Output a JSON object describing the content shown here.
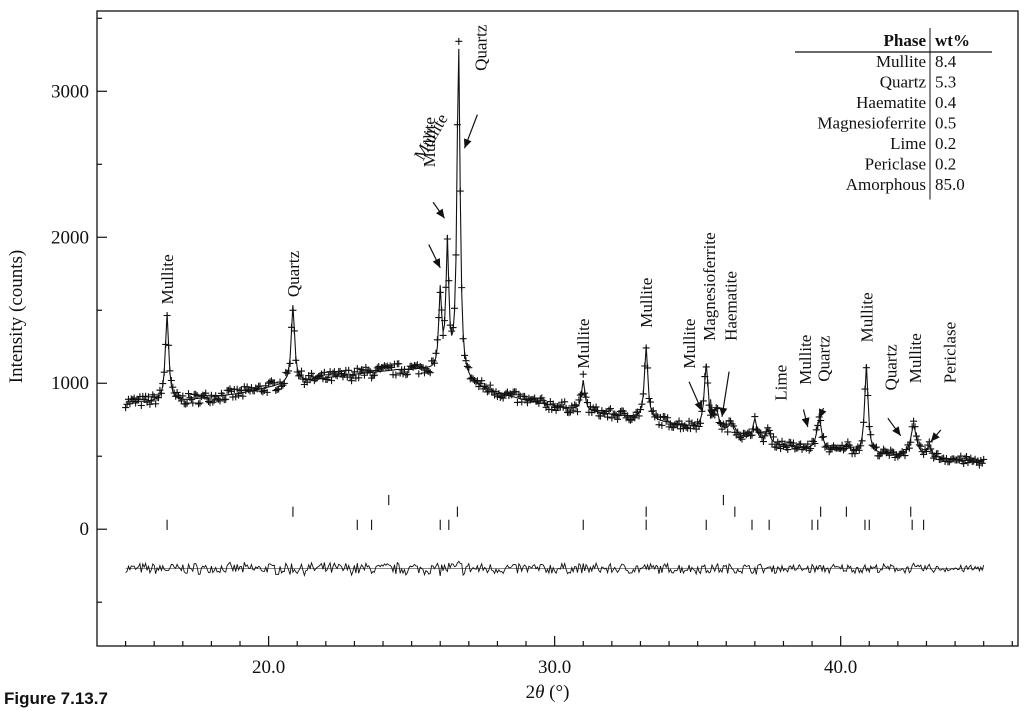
{
  "caption": "Figure 7.13.7",
  "chart_data": {
    "type": "line",
    "xlabel_prefix": "2",
    "xlabel_symbol": "θ",
    "xlabel_suffix": " (°)",
    "ylabel": "Intensity (counts)",
    "xlim": [
      14.0,
      46.2
    ],
    "ylim": [
      -800,
      3550
    ],
    "x_ticks": [
      {
        "value": 20,
        "label": "20.0"
      },
      {
        "value": 30,
        "label": "30.0"
      },
      {
        "value": 40,
        "label": "40.0"
      }
    ],
    "y_ticks": [
      {
        "value": 0,
        "label": "0"
      },
      {
        "value": 1000,
        "label": "1000"
      },
      {
        "value": 2000,
        "label": "2000"
      },
      {
        "value": 3000,
        "label": "3000"
      }
    ],
    "x_range": [
      15.0,
      45.0
    ],
    "step": 0.05,
    "background": [
      [
        15.0,
        870
      ],
      [
        17.0,
        880
      ],
      [
        19.0,
        930
      ],
      [
        21.0,
        1010
      ],
      [
        23.0,
        1060
      ],
      [
        24.5,
        1090
      ],
      [
        25.5,
        1090
      ],
      [
        26.5,
        1030
      ],
      [
        27.5,
        960
      ],
      [
        29.0,
        880
      ],
      [
        31.0,
        810
      ],
      [
        33.0,
        760
      ],
      [
        35.0,
        690
      ],
      [
        37.0,
        600
      ],
      [
        39.0,
        540
      ],
      [
        41.0,
        515
      ],
      [
        43.0,
        490
      ],
      [
        45.0,
        460
      ]
    ],
    "peaks": [
      {
        "x": 16.45,
        "h": 600,
        "w": 0.07
      },
      {
        "x": 20.85,
        "h": 530,
        "w": 0.07
      },
      {
        "x": 26.0,
        "h": 540,
        "w": 0.06
      },
      {
        "x": 26.25,
        "h": 880,
        "w": 0.06
      },
      {
        "x": 26.64,
        "h": 2300,
        "w": 0.065
      },
      {
        "x": 31.0,
        "h": 210,
        "w": 0.07
      },
      {
        "x": 33.2,
        "h": 500,
        "w": 0.07
      },
      {
        "x": 35.3,
        "h": 440,
        "w": 0.08
      },
      {
        "x": 35.65,
        "h": 130,
        "w": 0.12
      },
      {
        "x": 36.2,
        "h": 80,
        "w": 0.15
      },
      {
        "x": 37.0,
        "h": 150,
        "w": 0.08
      },
      {
        "x": 37.45,
        "h": 90,
        "w": 0.09
      },
      {
        "x": 39.25,
        "h": 210,
        "w": 0.11
      },
      {
        "x": 40.2,
        "h": 50,
        "w": 0.1
      },
      {
        "x": 40.9,
        "h": 610,
        "w": 0.07
      },
      {
        "x": 42.55,
        "h": 210,
        "w": 0.12
      },
      {
        "x": 43.1,
        "h": 70,
        "w": 0.1
      }
    ],
    "difference_offset": -270,
    "reflection_rows": [
      {
        "y_center": 200,
        "positions": [
          24.2,
          35.9
        ]
      },
      {
        "y_center": 120,
        "positions": [
          20.85,
          26.6,
          33.2,
          36.3,
          39.3,
          40.2,
          42.45
        ]
      },
      {
        "y_center": 30,
        "positions": [
          16.45,
          23.1,
          23.6,
          26.0,
          26.3,
          31.0,
          33.2,
          35.3,
          36.9,
          37.5,
          39.0,
          39.2,
          40.85,
          41.0,
          42.5,
          42.9
        ]
      }
    ],
    "annotations": [
      {
        "text": "Mullite",
        "x": 16.45,
        "y": 1540,
        "rot": -90,
        "arrow": null
      },
      {
        "text": "Quartz",
        "x": 20.85,
        "y": 1590,
        "rot": -90,
        "arrow": null
      },
      {
        "text": "Mullite",
        "x": 25.6,
        "y": 2480,
        "rot": -90,
        "arrow": {
          "from": [
            25.6,
            1950
          ],
          "to": [
            26.0,
            1790
          ]
        }
      },
      {
        "text": "Mullite",
        "x": 26.0,
        "y": 2480,
        "rot": 0,
        "arrow": {
          "from": [
            25.75,
            2240
          ],
          "to": [
            26.15,
            2130
          ]
        }
      },
      {
        "text": "Quartz",
        "x": 27.4,
        "y": 3140,
        "rot": -90,
        "arrow": {
          "from": [
            27.3,
            2840
          ],
          "to": [
            26.85,
            2610
          ]
        }
      },
      {
        "text": "Mullite",
        "x": 31.0,
        "y": 1100,
        "rot": -90,
        "arrow": null
      },
      {
        "text": "Mullite",
        "x": 33.2,
        "y": 1380,
        "rot": -90,
        "arrow": null
      },
      {
        "text": "Mullite",
        "x": 34.7,
        "y": 1100,
        "rot": -90,
        "arrow": {
          "from": [
            34.7,
            1010
          ],
          "to": [
            35.15,
            810
          ]
        }
      },
      {
        "text": "Magnesioferrite",
        "x": 35.4,
        "y": 1290,
        "rot": -90,
        "arrow": {
          "from": [
            35.45,
            890
          ],
          "to": [
            35.5,
            760
          ]
        }
      },
      {
        "text": "Haematite",
        "x": 36.15,
        "y": 1290,
        "rot": -90,
        "arrow": {
          "from": [
            36.1,
            1080
          ],
          "to": [
            35.85,
            770
          ]
        }
      },
      {
        "text": "Lime",
        "x": 37.9,
        "y": 880,
        "rot": -90,
        "arrow": null
      },
      {
        "text": "Mullite",
        "x": 38.75,
        "y": 990,
        "rot": -90,
        "arrow": {
          "from": [
            38.7,
            820
          ],
          "to": [
            38.85,
            700
          ]
        }
      },
      {
        "text": "Quartz",
        "x": 39.4,
        "y": 1010,
        "rot": -90,
        "arrow": {
          "from": [
            39.4,
            830
          ],
          "to": [
            39.25,
            760
          ]
        }
      },
      {
        "text": "Mullite",
        "x": 40.9,
        "y": 1280,
        "rot": -90,
        "arrow": null
      },
      {
        "text": "Quartz",
        "x": 41.75,
        "y": 950,
        "rot": -90,
        "arrow": {
          "from": [
            41.65,
            760
          ],
          "to": [
            42.1,
            640
          ]
        }
      },
      {
        "text": "Mullite",
        "x": 42.6,
        "y": 1000,
        "rot": -90,
        "arrow": null
      },
      {
        "text": "Periclase",
        "x": 43.8,
        "y": 1000,
        "rot": -90,
        "arrow": {
          "from": [
            43.5,
            680
          ],
          "to": [
            43.15,
            600
          ]
        }
      }
    ],
    "phase_table": {
      "header": [
        "Phase",
        "wt%"
      ],
      "rows": [
        [
          "Mullite",
          "8.4"
        ],
        [
          "Quartz",
          "5.3"
        ],
        [
          "Haematite",
          "0.4"
        ],
        [
          "Magnesioferrite",
          "0.5"
        ],
        [
          "Lime",
          "0.2"
        ],
        [
          "Periclase",
          "0.2"
        ],
        [
          "Amorphous",
          "85.0"
        ]
      ]
    }
  }
}
